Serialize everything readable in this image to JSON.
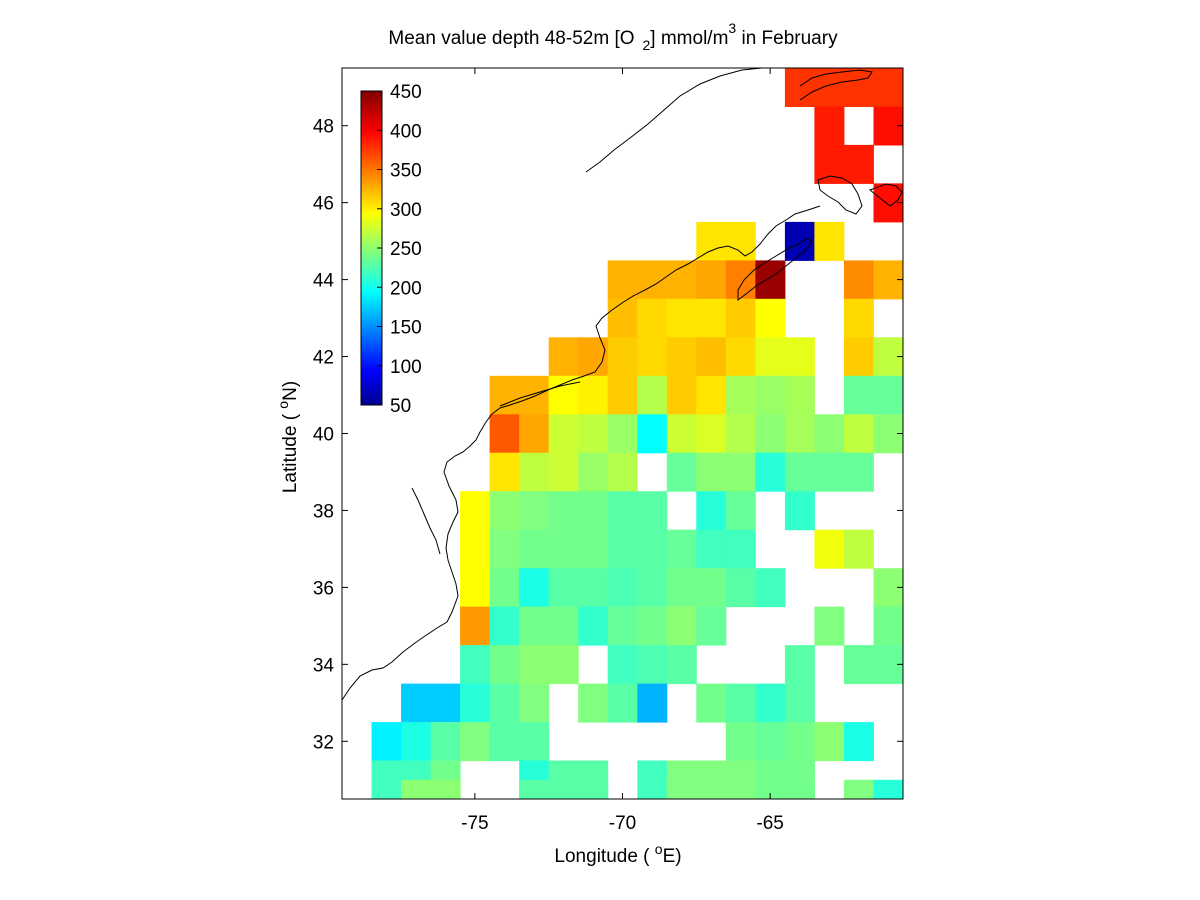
{
  "chart_data": {
    "type": "heatmap",
    "title": {
      "prefix": "Mean value depth 48-52m [O",
      "sub": "2",
      "mid": "] mmol/m",
      "sup": "3",
      "suffix": " in February"
    },
    "xlabel": {
      "prefix": "Longitude ( ",
      "sup": "o",
      "suffix": "E)"
    },
    "ylabel": {
      "prefix": "Latitude ( ",
      "sup": "o",
      "suffix": "N)"
    },
    "xlim": [
      -79.5,
      -60.5
    ],
    "ylim": [
      30.5,
      49.5
    ],
    "xticks": [
      -75,
      -70,
      -65
    ],
    "yticks": [
      32,
      34,
      36,
      38,
      40,
      42,
      44,
      46,
      48
    ],
    "colorbar": {
      "min": 50,
      "max": 450,
      "colormap": "jet",
      "ticks": [
        450,
        400,
        350,
        300,
        250,
        200,
        150,
        100,
        50
      ]
    },
    "grid_step_degrees": 1,
    "row_origin_lon": -79.5,
    "rows": [
      {
        "lat": 49,
        "values": [
          null,
          null,
          null,
          null,
          null,
          null,
          null,
          null,
          null,
          null,
          null,
          null,
          null,
          null,
          null,
          380,
          380,
          380,
          380
        ]
      },
      {
        "lat": 48,
        "values": [
          null,
          null,
          null,
          null,
          null,
          null,
          null,
          null,
          null,
          null,
          null,
          null,
          null,
          null,
          null,
          null,
          390,
          null,
          395
        ]
      },
      {
        "lat": 47,
        "values": [
          null,
          null,
          null,
          null,
          null,
          null,
          null,
          null,
          null,
          null,
          null,
          null,
          null,
          null,
          null,
          null,
          390,
          390,
          null
        ]
      },
      {
        "lat": 46,
        "values": [
          null,
          null,
          null,
          null,
          null,
          null,
          null,
          null,
          null,
          null,
          null,
          null,
          null,
          null,
          null,
          null,
          null,
          null,
          395
        ]
      },
      {
        "lat": 45,
        "values": [
          null,
          null,
          null,
          null,
          null,
          null,
          null,
          null,
          null,
          null,
          null,
          null,
          310,
          310,
          null,
          70,
          310,
          null,
          null
        ]
      },
      {
        "lat": 44,
        "values": [
          null,
          null,
          null,
          null,
          null,
          null,
          null,
          null,
          null,
          330,
          330,
          330,
          335,
          350,
          440,
          null,
          null,
          345,
          330
        ]
      },
      {
        "lat": 43,
        "values": [
          null,
          null,
          null,
          null,
          null,
          null,
          null,
          null,
          null,
          325,
          315,
          310,
          310,
          320,
          300,
          null,
          null,
          315,
          null
        ]
      },
      {
        "lat": 42,
        "values": [
          null,
          null,
          null,
          null,
          null,
          null,
          null,
          330,
          335,
          320,
          315,
          320,
          325,
          315,
          290,
          290,
          null,
          320,
          275
        ]
      },
      {
        "lat": 41,
        "values": [
          null,
          null,
          null,
          null,
          null,
          330,
          330,
          300,
          305,
          320,
          270,
          320,
          310,
          265,
          260,
          265,
          null,
          240,
          240
        ]
      },
      {
        "lat": 40,
        "values": [
          null,
          null,
          null,
          null,
          null,
          365,
          335,
          280,
          275,
          260,
          200,
          280,
          285,
          270,
          255,
          265,
          255,
          275,
          255
        ]
      },
      {
        "lat": 39,
        "values": [
          null,
          null,
          null,
          null,
          null,
          310,
          275,
          280,
          260,
          270,
          null,
          240,
          255,
          255,
          215,
          240,
          240,
          240,
          null
        ]
      },
      {
        "lat": 38,
        "values": [
          null,
          null,
          null,
          null,
          300,
          255,
          250,
          245,
          245,
          235,
          235,
          null,
          215,
          240,
          null,
          220,
          null,
          null,
          null
        ]
      },
      {
        "lat": 37,
        "values": [
          null,
          null,
          null,
          null,
          300,
          250,
          245,
          245,
          245,
          235,
          235,
          240,
          225,
          225,
          null,
          null,
          295,
          275,
          null
        ]
      },
      {
        "lat": 36,
        "values": [
          null,
          null,
          null,
          null,
          300,
          245,
          210,
          235,
          235,
          230,
          235,
          245,
          245,
          235,
          225,
          null,
          null,
          null,
          255
        ]
      },
      {
        "lat": 35,
        "values": [
          null,
          null,
          null,
          null,
          340,
          220,
          245,
          245,
          220,
          240,
          245,
          255,
          240,
          null,
          null,
          null,
          250,
          null,
          245
        ]
      },
      {
        "lat": 34,
        "values": [
          null,
          null,
          null,
          null,
          225,
          245,
          255,
          255,
          null,
          225,
          230,
          235,
          null,
          null,
          null,
          235,
          null,
          240,
          240
        ]
      },
      {
        "lat": 33,
        "values": [
          null,
          null,
          180,
          180,
          215,
          235,
          250,
          null,
          250,
          235,
          170,
          null,
          245,
          235,
          220,
          235,
          null,
          null,
          null
        ]
      },
      {
        "lat": 32,
        "values": [
          null,
          195,
          210,
          235,
          250,
          235,
          235,
          null,
          null,
          null,
          null,
          null,
          null,
          245,
          240,
          245,
          255,
          210,
          null
        ]
      },
      {
        "lat": 31,
        "values": [
          null,
          225,
          225,
          245,
          null,
          null,
          215,
          235,
          235,
          null,
          225,
          250,
          250,
          250,
          245,
          245,
          null,
          null,
          null
        ]
      },
      {
        "lat": 30.5,
        "values": [
          null,
          null,
          255,
          255,
          null,
          null,
          235,
          235,
          235,
          null,
          null,
          250,
          250,
          250,
          245,
          245,
          null,
          250,
          215
        ]
      }
    ],
    "coastline_note": "continental coastline drawn as thin black outline"
  }
}
